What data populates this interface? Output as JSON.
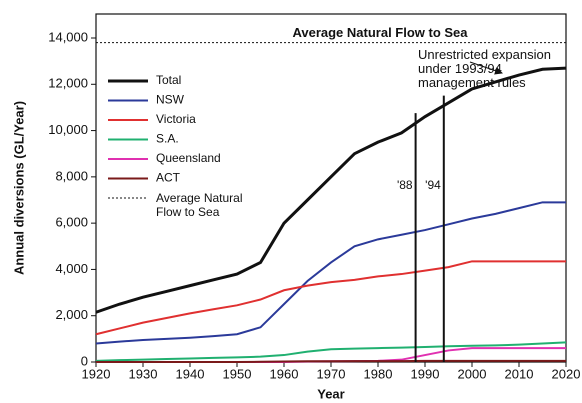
{
  "chart_data": {
    "type": "line",
    "y_label": "Annual diversions (GL/Year)",
    "x_label": "Year",
    "x": [
      1920,
      1925,
      1930,
      1935,
      1940,
      1945,
      1950,
      1955,
      1960,
      1965,
      1970,
      1975,
      1980,
      1985,
      1990,
      1995,
      2000,
      2005,
      2010,
      2015,
      2020
    ],
    "series": [
      {
        "name": "Total",
        "color": "#111111",
        "values": [
          2150,
          2500,
          2800,
          3050,
          3300,
          3550,
          3800,
          4300,
          6000,
          7000,
          8000,
          9000,
          9500,
          9900,
          10600,
          11200,
          11800,
          12100,
          12400,
          12650,
          12700
        ]
      },
      {
        "name": "NSW",
        "color": "#2b3a9a",
        "values": [
          800,
          880,
          950,
          1000,
          1050,
          1120,
          1200,
          1500,
          2500,
          3500,
          4300,
          5000,
          5300,
          5500,
          5700,
          5950,
          6200,
          6400,
          6650,
          6900,
          6900
        ]
      },
      {
        "name": "Victoria",
        "color": "#e03030",
        "values": [
          1200,
          1450,
          1700,
          1900,
          2100,
          2280,
          2450,
          2700,
          3100,
          3300,
          3450,
          3550,
          3700,
          3800,
          3950,
          4100,
          4350,
          4350,
          4350,
          4350,
          4350
        ]
      },
      {
        "name": "S.A.",
        "color": "#20b070",
        "values": [
          50,
          80,
          100,
          130,
          150,
          180,
          200,
          230,
          300,
          450,
          550,
          580,
          600,
          620,
          650,
          680,
          700,
          720,
          750,
          800,
          850
        ]
      },
      {
        "name": "Queensland",
        "color": "#e030b0",
        "values": [
          0,
          0,
          0,
          0,
          0,
          0,
          0,
          0,
          0,
          20,
          30,
          40,
          50,
          100,
          300,
          500,
          600,
          600,
          600,
          600,
          600
        ]
      },
      {
        "name": "ACT",
        "color": "#7a1a1a",
        "values": [
          0,
          0,
          0,
          0,
          0,
          0,
          0,
          10,
          20,
          30,
          30,
          40,
          40,
          40,
          50,
          50,
          50,
          50,
          50,
          50,
          50
        ]
      }
    ],
    "reference": {
      "name": "Average Natural Flow to Sea",
      "value": 13800
    },
    "markers": [
      {
        "value": 1988,
        "label": "'88"
      },
      {
        "value": 1994,
        "label": "'94"
      }
    ],
    "annotation": "Unrestricted expansion under 1993/94 management rules",
    "xlim": [
      1920,
      2020
    ],
    "xticks": [
      1920,
      1930,
      1940,
      1950,
      1960,
      1970,
      1980,
      1990,
      2000,
      2010,
      2020
    ],
    "ylim": [
      0,
      14000
    ],
    "yticks": [
      {
        "value": 0,
        "label": "0"
      },
      {
        "value": 2000,
        "label": "2,000"
      },
      {
        "value": 4000,
        "label": "4,000"
      },
      {
        "value": 6000,
        "label": "6,000"
      },
      {
        "value": 8000,
        "label": "8,000"
      },
      {
        "value": 10000,
        "label": "10,000"
      },
      {
        "value": 12000,
        "label": "12,000"
      },
      {
        "value": 14000,
        "label": "14,000"
      }
    ],
    "legend": "upper left"
  }
}
